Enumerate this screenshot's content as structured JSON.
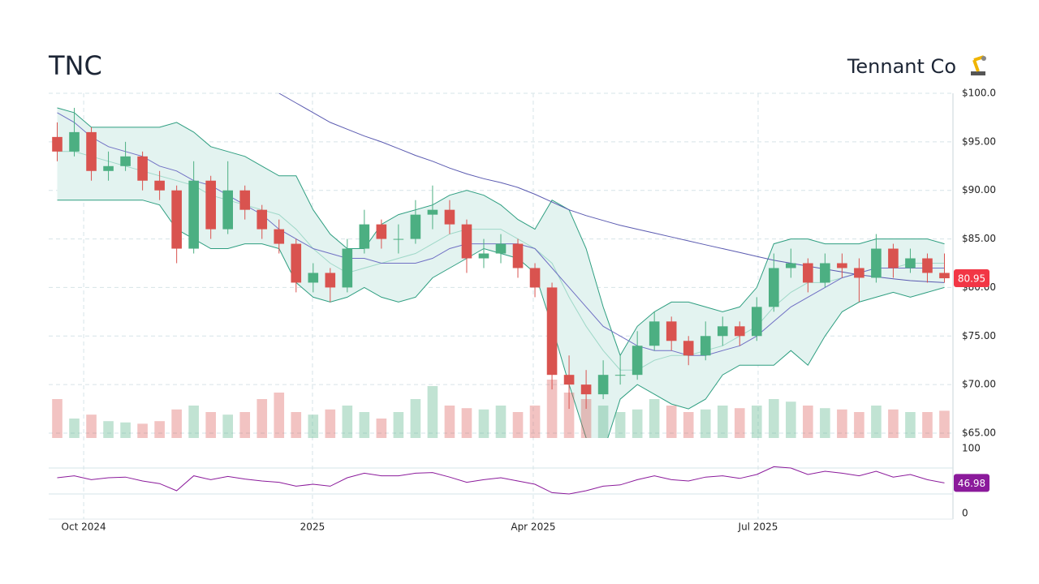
{
  "chart_data": {
    "type": "candlestick",
    "title": "TNC",
    "subtitle": "Tennant Co",
    "xlim": [
      -0.5,
      52.5
    ],
    "xticks": [
      {
        "value": 1.55,
        "label": "Oct 2024"
      },
      {
        "value": 14.96,
        "label": "2025"
      },
      {
        "value": 27.9,
        "label": "Apr 2025"
      },
      {
        "value": 41.08,
        "label": "Jul 2025"
      }
    ],
    "ylim": [
      65,
      100
    ],
    "yticks": [
      {
        "value": 65,
        "label": "$65.00"
      },
      {
        "value": 70,
        "label": "$70.00"
      },
      {
        "value": 75,
        "label": "$75.00"
      },
      {
        "value": 80,
        "label": "$80.00"
      },
      {
        "value": 85,
        "label": "$85.00"
      },
      {
        "value": 90,
        "label": "$90.00"
      },
      {
        "value": 95,
        "label": "$95.00"
      },
      {
        "value": 100,
        "label": "$100.0"
      }
    ],
    "grid": true,
    "up_color": "#4caf82",
    "down_color": "#d9534f",
    "open": [
      95.5,
      94,
      96,
      92,
      92.5,
      93.5,
      91,
      90,
      84,
      91,
      86,
      90,
      88,
      86,
      84.5,
      80.5,
      81.5,
      80,
      84,
      86.5,
      85,
      85,
      87.5,
      88,
      86.5,
      83,
      83.5,
      84.5,
      82,
      80,
      71,
      70,
      69,
      71,
      71,
      74,
      76.5,
      74.5,
      73,
      75,
      76,
      75,
      78,
      82,
      82.5,
      80.5,
      82.5,
      82,
      81,
      84,
      82,
      83,
      81.5
    ],
    "high": [
      97,
      98.5,
      96.5,
      94,
      95,
      94,
      92,
      90.5,
      93,
      91.5,
      93,
      90.5,
      88.5,
      87,
      85,
      82.5,
      82,
      85,
      88,
      87,
      86.5,
      89,
      90.5,
      89,
      87,
      85,
      85.5,
      85,
      82.5,
      80.5,
      73,
      71.5,
      72.5,
      73,
      75.5,
      77.5,
      77,
      75,
      76.5,
      77,
      76.5,
      79,
      83.5,
      84,
      83,
      83.5,
      83.5,
      83,
      85.5,
      84.5,
      84,
      83.5,
      83.5
    ],
    "low": [
      93,
      93.5,
      91,
      91,
      92,
      90,
      89,
      82.5,
      83.5,
      85,
      85.5,
      87,
      85,
      83.5,
      79.5,
      79.5,
      78.5,
      79.5,
      83.5,
      84,
      83.5,
      84.5,
      86,
      85.5,
      81.5,
      82,
      82.5,
      81,
      79,
      69.5,
      67.5,
      67.5,
      68.5,
      70,
      70.5,
      73.5,
      73.5,
      72,
      72.5,
      74,
      74,
      74.5,
      77.5,
      81,
      79.5,
      80,
      81,
      78.5,
      80.5,
      81,
      81.5,
      80.5,
      80.5
    ],
    "close": [
      94,
      96,
      92,
      92.5,
      93.5,
      91,
      90,
      84,
      91,
      86,
      90,
      88,
      86,
      84.5,
      80.5,
      81.5,
      80,
      84,
      86.5,
      85,
      85,
      87.5,
      88,
      86.5,
      83,
      83.5,
      84.5,
      82,
      80,
      71,
      70,
      69,
      71,
      71,
      74,
      76.5,
      74.5,
      73,
      75,
      76,
      75,
      78,
      82,
      82.5,
      80.5,
      82.5,
      82,
      81,
      84,
      82,
      83,
      81.5,
      80.95
    ],
    "volume": [
      300,
      150,
      180,
      130,
      120,
      110,
      130,
      220,
      250,
      200,
      180,
      200,
      300,
      350,
      200,
      180,
      220,
      250,
      200,
      150,
      200,
      300,
      400,
      250,
      230,
      220,
      250,
      200,
      250,
      450,
      350,
      300,
      250,
      200,
      220,
      300,
      250,
      200,
      220,
      250,
      230,
      250,
      300,
      280,
      250,
      230,
      220,
      200,
      250,
      220,
      200,
      200,
      210
    ],
    "bands": {
      "fill": "#e3f3f0",
      "edge": "#2e9e80",
      "middle_color": "#9fd8c8",
      "upper": [
        98.5,
        98,
        96.5,
        96.5,
        96.5,
        96.5,
        96.5,
        97,
        96,
        94.5,
        94,
        93.5,
        92.5,
        91.5,
        91.5,
        88,
        85.5,
        84,
        84,
        86.5,
        87.5,
        88,
        88.5,
        89.5,
        90,
        89.5,
        88.5,
        87,
        86,
        89,
        88,
        84,
        78,
        73,
        76,
        77.5,
        78.5,
        78.5,
        78,
        77.5,
        78,
        80,
        84.5,
        85,
        85,
        84.5,
        84.5,
        84.5,
        85,
        85,
        85,
        85,
        84.5
      ],
      "middle": [
        94,
        94,
        93.5,
        93,
        92.5,
        92,
        91.5,
        91,
        90.5,
        89.5,
        89,
        88.5,
        88,
        87.5,
        86,
        84,
        82.5,
        81.5,
        82,
        82.5,
        83,
        83.5,
        84.5,
        85.5,
        86,
        86,
        86,
        85,
        84,
        82.5,
        79,
        76,
        73.5,
        71.5,
        71.5,
        72.5,
        73,
        73,
        73.5,
        74,
        75,
        76,
        78,
        79.5,
        80.5,
        80.5,
        81,
        81.5,
        82,
        82,
        82.5,
        82.5,
        82.5
      ],
      "lower": [
        89,
        89,
        89,
        89,
        89,
        89,
        88.5,
        86,
        85,
        84,
        84,
        84.5,
        84.5,
        84,
        80.5,
        79,
        78.5,
        79,
        80,
        79,
        78.5,
        79,
        81,
        82,
        83,
        84,
        83.5,
        83,
        81.5,
        76,
        70,
        64.5,
        63,
        68.5,
        70,
        69,
        68,
        67.5,
        68.5,
        71,
        72,
        72,
        72,
        73.5,
        72,
        75,
        77.5,
        78.5,
        79,
        79.5,
        79,
        79.5,
        80
      ]
    },
    "moving_averages": [
      {
        "color": "#7070c4",
        "values": [
          98,
          97,
          95.5,
          94.5,
          94,
          93.5,
          92.5,
          92,
          91,
          90.5,
          89.5,
          88.5,
          87.5,
          86,
          85,
          84,
          83.5,
          83,
          83,
          82.5,
          82.5,
          82.5,
          83,
          84,
          84.5,
          84.5,
          84.5,
          84.5,
          84,
          82,
          80,
          78,
          76,
          75,
          74,
          73.5,
          73.5,
          73,
          73,
          73.5,
          74,
          75,
          76.5,
          78,
          79,
          80,
          81,
          81.5,
          82,
          82,
          82,
          82,
          82
        ]
      },
      {
        "color": "#5a5ab0",
        "values": [
          null,
          null,
          null,
          null,
          null,
          null,
          null,
          null,
          null,
          null,
          null,
          null,
          null,
          100,
          99,
          98,
          97,
          96.3,
          95.6,
          95,
          94.3,
          93.6,
          93,
          92.3,
          91.7,
          91.2,
          90.8,
          90.3,
          89.6,
          88.8,
          88,
          87.4,
          86.9,
          86.4,
          86,
          85.6,
          85.2,
          84.8,
          84.4,
          84,
          83.6,
          83.2,
          82.8,
          82.5,
          82.2,
          81.9,
          81.6,
          81.3,
          81.1,
          80.9,
          80.7,
          80.6,
          80.5
        ]
      }
    ],
    "price_tag_color": "#f23645",
    "rsi": {
      "color": "#8b1a9b",
      "ylim": [
        0,
        100
      ],
      "yticks": [
        0,
        100
      ],
      "levels": [
        30,
        70
      ],
      "values": [
        55,
        58,
        52,
        55,
        56,
        50,
        46,
        35,
        58,
        52,
        57,
        53,
        50,
        48,
        42,
        45,
        42,
        55,
        62,
        58,
        58,
        62,
        63,
        56,
        48,
        52,
        55,
        50,
        45,
        32,
        30,
        35,
        42,
        44,
        52,
        58,
        52,
        50,
        56,
        58,
        54,
        60,
        72,
        70,
        60,
        65,
        62,
        58,
        65,
        56,
        60,
        52,
        46.98
      ]
    }
  }
}
